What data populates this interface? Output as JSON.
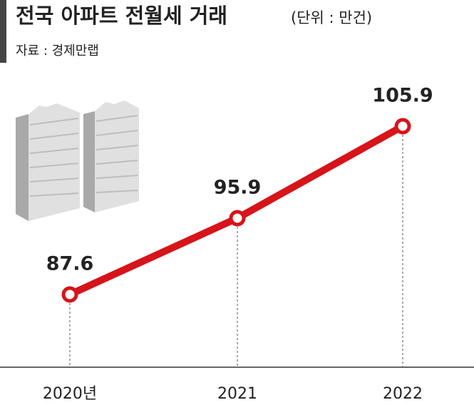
{
  "chart_data": {
    "type": "line",
    "title": "전국 아파트 전월세 거래",
    "unit": "(단위 : 만건)",
    "source": "자료 : 경제만랩",
    "categories": [
      "2020년",
      "2021",
      "2022"
    ],
    "values": [
      87.6,
      95.9,
      105.9
    ],
    "color": "#d7141a"
  }
}
